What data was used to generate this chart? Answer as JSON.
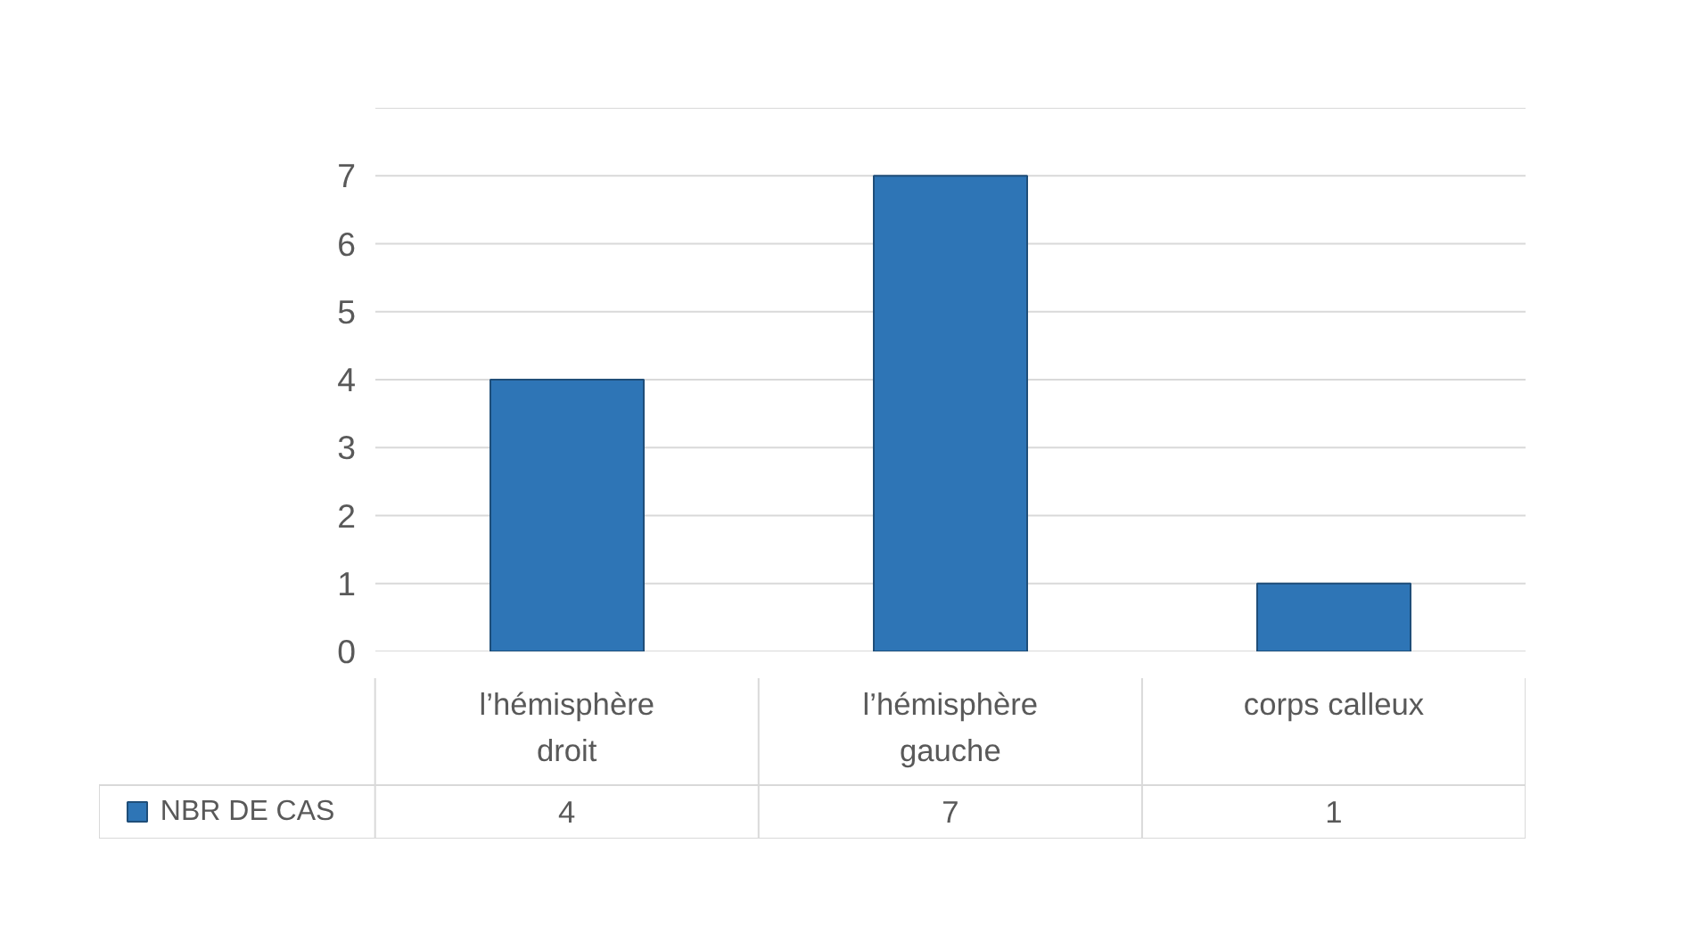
{
  "chart_data": {
    "type": "bar",
    "categories": [
      "l’hémisphère droit",
      "l’hémisphère gauche",
      "corps calleux"
    ],
    "series": [
      {
        "name": "NBR DE CAS",
        "color": "#2e75b6",
        "values": [
          4,
          7,
          1
        ]
      }
    ],
    "ylim": [
      0,
      8
    ],
    "yticks": [
      0,
      1,
      2,
      3,
      4,
      5,
      6,
      7,
      {
        "value": 8,
        "label": null
      }
    ],
    "grid": "y",
    "data_labels": true,
    "legend": "bottom"
  }
}
